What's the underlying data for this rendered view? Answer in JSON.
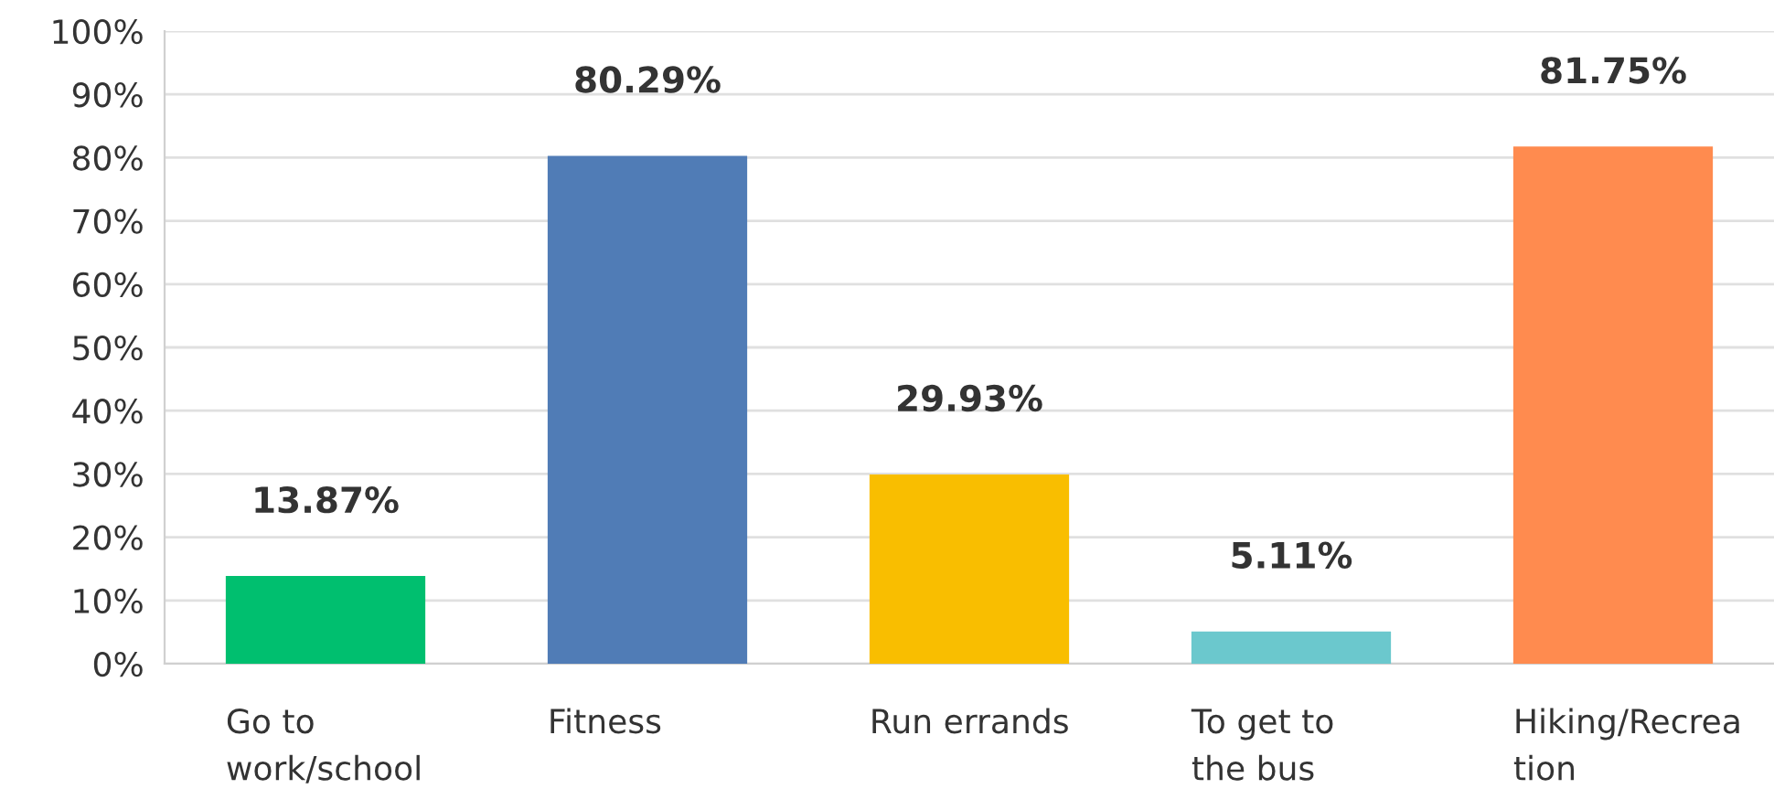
{
  "chart_data": {
    "type": "bar",
    "categories": [
      "Go to\nwork/school",
      "Fitness",
      "Run errands",
      "To get to\nthe bus",
      "Hiking/Recrea\ntion"
    ],
    "values": [
      13.87,
      80.29,
      29.93,
      5.11,
      81.75
    ],
    "colors": [
      "#00bf6f",
      "#507cb6",
      "#f9be00",
      "#6bc8cd",
      "#ff8b4f"
    ],
    "value_labels": [
      "13.87%",
      "80.29%",
      "29.93%",
      "5.11%",
      "81.75%"
    ],
    "ylim": [
      0,
      100
    ],
    "yticks": [
      {
        "value": 0,
        "label": "0%"
      },
      {
        "value": 10,
        "label": "10%"
      },
      {
        "value": 20,
        "label": "20%"
      },
      {
        "value": 30,
        "label": "30%"
      },
      {
        "value": 40,
        "label": "40%"
      },
      {
        "value": 50,
        "label": "50%"
      },
      {
        "value": 60,
        "label": "60%"
      },
      {
        "value": 70,
        "label": "70%"
      },
      {
        "value": 80,
        "label": "80%"
      },
      {
        "value": 90,
        "label": "90%"
      },
      {
        "value": 100,
        "label": "100%"
      }
    ],
    "grid": "y"
  }
}
